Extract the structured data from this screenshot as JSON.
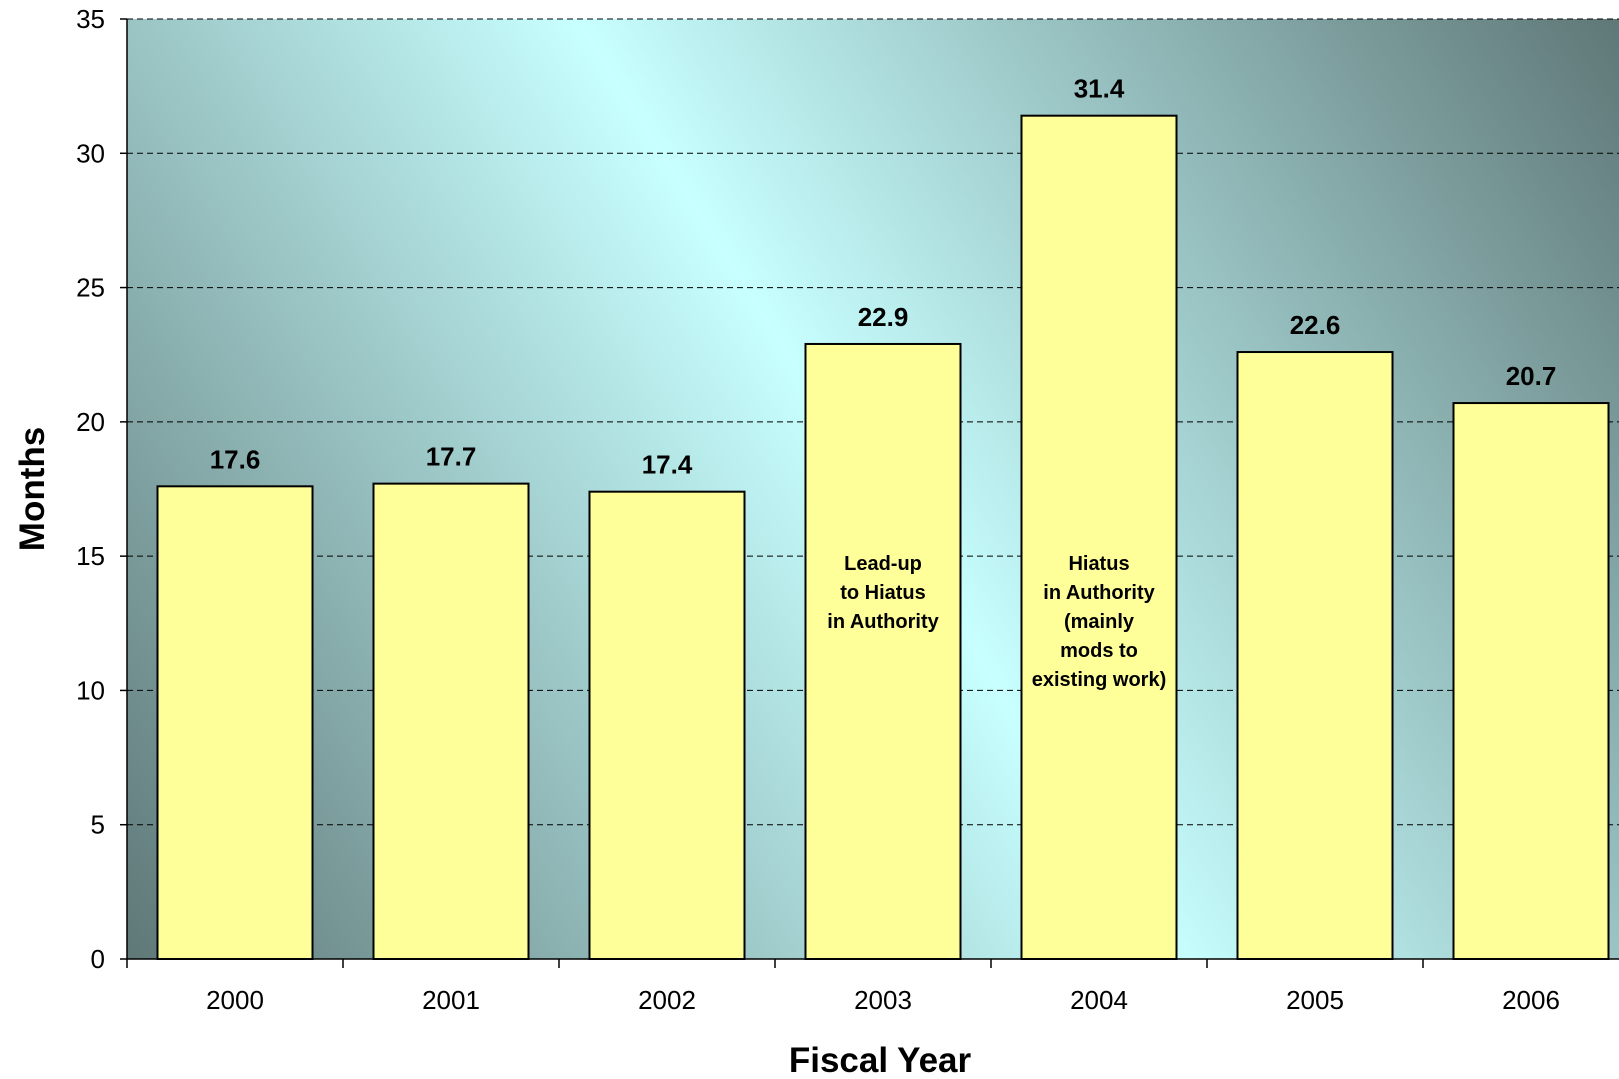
{
  "chart_data": {
    "type": "bar",
    "categories": [
      "2000",
      "2001",
      "2002",
      "2003",
      "2004",
      "2005",
      "2006"
    ],
    "values": [
      17.6,
      17.7,
      17.4,
      22.9,
      31.4,
      22.6,
      20.7
    ],
    "value_labels": [
      "17.6",
      "17.7",
      "17.4",
      "22.9",
      "31.4",
      "22.6",
      "20.7"
    ],
    "annotations": [
      {
        "category": "2003",
        "lines": [
          "Lead-up",
          "to Hiatus",
          "in Authority"
        ]
      },
      {
        "category": "2004",
        "lines": [
          "Hiatus",
          "in Authority",
          "(mainly",
          "mods to",
          "existing work)"
        ]
      }
    ],
    "title": "",
    "xlabel": "Fiscal Year",
    "ylabel": "Months",
    "ylim": [
      0,
      35
    ],
    "yticks": [
      0,
      5,
      10,
      15,
      20,
      25,
      30,
      35
    ],
    "grid": true,
    "colors": {
      "bar_fill": "#ffff99",
      "bar_stroke": "#000000",
      "plot_gradient": [
        "#5a7070",
        "#c8ffff",
        "#5a7070"
      ],
      "gridline": "#000000"
    }
  }
}
